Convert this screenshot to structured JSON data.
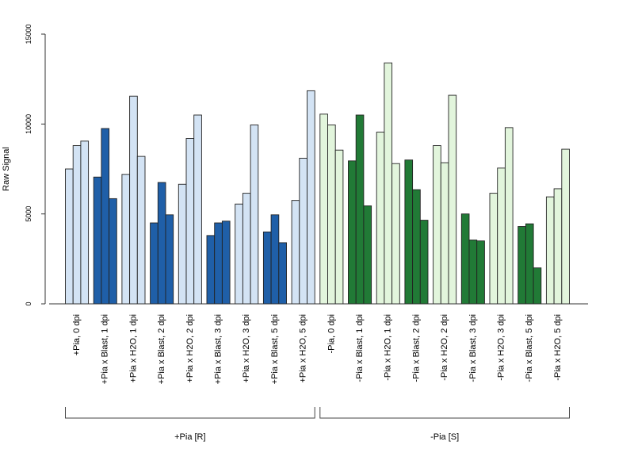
{
  "chart_data": {
    "type": "bar",
    "ylabel": "Raw Signal",
    "ylim": [
      0,
      15000
    ],
    "yticks": [
      0,
      5000,
      10000,
      15000
    ],
    "grid": false,
    "colors": {
      "light_blue": "#d3e3f4",
      "dark_blue": "#1f5fa8",
      "light_green": "#e2f5dc",
      "dark_green": "#217a36"
    },
    "categories": [
      "+Pia, 0 dpi",
      "+Pia x Blast, 1 dpi",
      "+Pia x H2O, 1 dpi",
      "+Pia x Blast, 2 dpi",
      "+Pia x H2O, 2 dpi",
      "+Pia x Blast, 3 dpi",
      "+Pia x H2O, 3 dpi",
      "+Pia x Blast, 5 dpi",
      "+Pia x H2O, 5 dpi",
      "-Pia, 0 dpi",
      "-Pia x Blast, 1 dpi",
      "-Pia x H2O, 1 dpi",
      "-Pia x Blast, 2 dpi",
      "-Pia x H2O, 2 dpi",
      "-Pia x Blast, 3 dpi",
      "-Pia x H2O, 3 dpi",
      "-Pia x Blast, 5 dpi",
      "-Pia x H2O, 5 dpi"
    ],
    "fills": [
      "light_blue",
      "dark_blue",
      "light_blue",
      "dark_blue",
      "light_blue",
      "dark_blue",
      "light_blue",
      "dark_blue",
      "light_blue",
      "light_green",
      "dark_green",
      "light_green",
      "dark_green",
      "light_green",
      "dark_green",
      "light_green",
      "dark_green",
      "light_green"
    ],
    "values": [
      [
        7500,
        8800,
        9050
      ],
      [
        7050,
        9750,
        5850
      ],
      [
        7200,
        11550,
        8200
      ],
      [
        4500,
        6750,
        4950
      ],
      [
        6650,
        9200,
        10500
      ],
      [
        3800,
        4500,
        4600
      ],
      [
        5550,
        6150,
        9950
      ],
      [
        4000,
        4950,
        3400
      ],
      [
        5750,
        8100,
        11850
      ],
      [
        10550,
        9950,
        8550
      ],
      [
        7950,
        10500,
        5450
      ],
      [
        9550,
        13400,
        7800
      ],
      [
        8000,
        6350,
        4650
      ],
      [
        8800,
        7850,
        11600
      ],
      [
        5000,
        3550,
        3500
      ],
      [
        6150,
        7550,
        9800
      ],
      [
        4300,
        4450,
        2000
      ],
      [
        5950,
        6400,
        8600
      ]
    ],
    "groups": [
      {
        "label": "+Pia [R]",
        "from": 0,
        "to": 8
      },
      {
        "label": "-Pia [S]",
        "from": 9,
        "to": 17
      }
    ]
  }
}
